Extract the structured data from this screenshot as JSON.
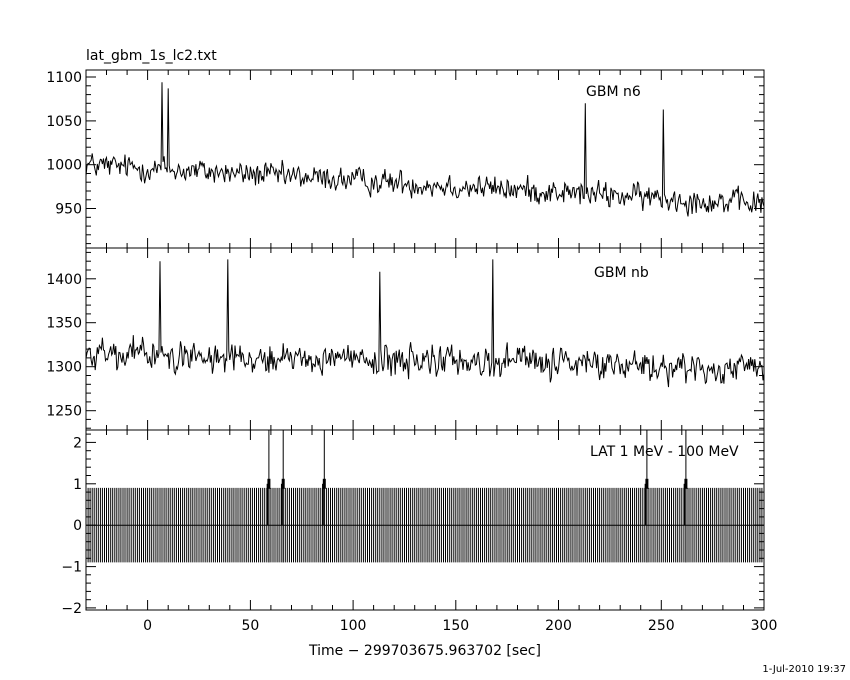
{
  "title": "lat_gbm_1s_lc2.txt",
  "footer_timestamp": "1-Jul-2010 19:37",
  "colors": {
    "foreground": "#000000",
    "background": "#ffffff"
  },
  "chart_data": [
    {
      "type": "line",
      "series": [
        {
          "name": "GBM n6"
        }
      ],
      "xlim": [
        -30,
        300
      ],
      "ylim": [
        905,
        1108
      ],
      "xticks": [
        0,
        50,
        100,
        150,
        200,
        250,
        300
      ],
      "yticks": [
        950,
        1000,
        1050,
        1100
      ],
      "ytick_labels": [
        "950",
        "1000",
        "1050",
        "1100"
      ],
      "start_level": 1000,
      "end_level": 955,
      "noise_amplitude": 28,
      "peaks": [
        {
          "x": 7,
          "y": 1094
        },
        {
          "x": 10,
          "y": 1087
        },
        {
          "x": 213,
          "y": 1070
        },
        {
          "x": 251,
          "y": 1063
        }
      ]
    },
    {
      "type": "line",
      "series": [
        {
          "name": "GBM nb"
        }
      ],
      "xlim": [
        -30,
        300
      ],
      "ylim": [
        1228,
        1435
      ],
      "xticks": [
        0,
        50,
        100,
        150,
        200,
        250,
        300
      ],
      "yticks": [
        1250,
        1300,
        1350,
        1400
      ],
      "ytick_labels": [
        "1250",
        "1300",
        "1350",
        "1400"
      ],
      "start_level": 1315,
      "end_level": 1298,
      "noise_amplitude": 32,
      "peaks": [
        {
          "x": 6,
          "y": 1420
        },
        {
          "x": 39,
          "y": 1422
        },
        {
          "x": 168,
          "y": 1422
        },
        {
          "x": 113,
          "y": 1408
        }
      ]
    },
    {
      "type": "bar",
      "series": [
        {
          "name": "LAT 1 MeV - 100 MeV"
        }
      ],
      "xlim": [
        -30,
        300
      ],
      "ylim": [
        -2.05,
        2.3
      ],
      "xticks": [
        0,
        50,
        100,
        150,
        200,
        250,
        300
      ],
      "xtick_labels": [
        "0",
        "50",
        "100",
        "150",
        "200",
        "250",
        "300"
      ],
      "yticks": [
        -2,
        -1,
        0,
        1,
        2
      ],
      "ytick_labels": [
        "−2",
        "−1",
        "0",
        "1",
        "2"
      ],
      "xlabel": "Time − 299703675.963702 [sec]",
      "baseline": 0,
      "error_band": [
        -0.9,
        0.9
      ],
      "bin_width_sec": 1,
      "event_error_top": 2.3,
      "events": [
        {
          "x": 59,
          "y": 1
        },
        {
          "x": 66,
          "y": 1
        },
        {
          "x": 86,
          "y": 1
        },
        {
          "x": 243,
          "y": 1
        },
        {
          "x": 262,
          "y": 1
        }
      ]
    }
  ]
}
